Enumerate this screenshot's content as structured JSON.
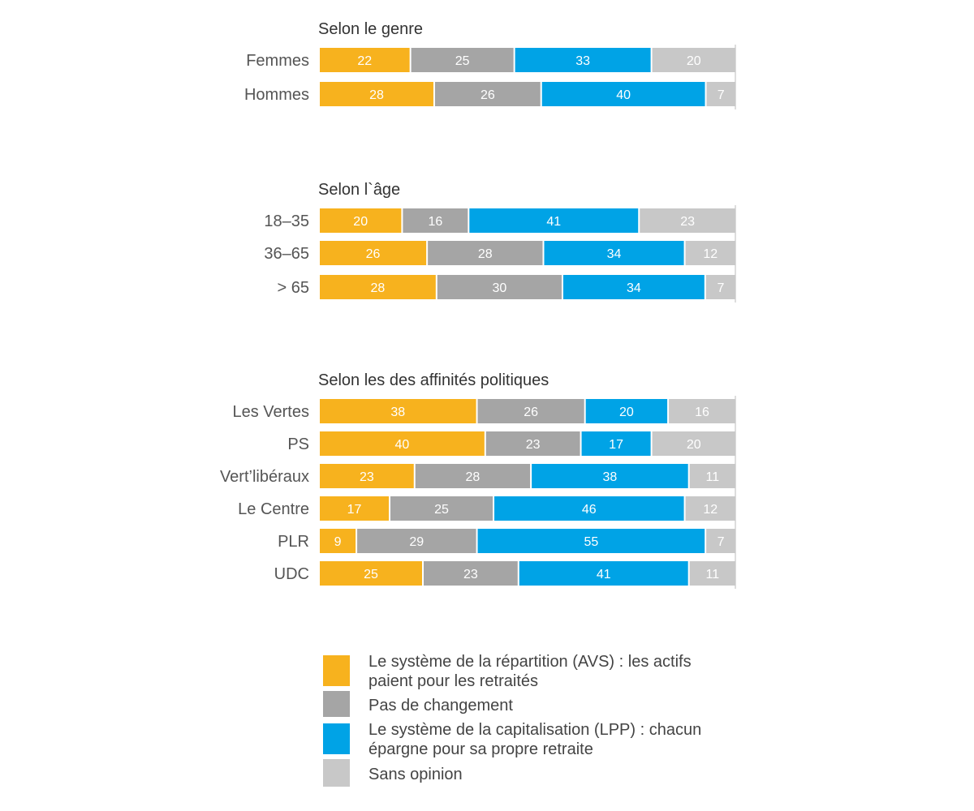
{
  "colors": {
    "repartition": "#f7b21e",
    "pas_changement": "#a5a5a5",
    "capitalisation": "#00a3e6",
    "sans_opinion": "#c8c8c8",
    "axis": "#bbbbbb",
    "value_text": "#ffffff"
  },
  "legend": [
    {
      "key": "repartition",
      "lines": [
        "Le système de la répartition (AVS) : les actifs",
        "paient pour les retraités"
      ]
    },
    {
      "key": "pas_changement",
      "lines": [
        "Pas de changement"
      ]
    },
    {
      "key": "capitalisation",
      "lines": [
        "Le système de la capitalisation (LPP) : chacun",
        "épargne pour sa propre retraite"
      ]
    },
    {
      "key": "sans_opinion",
      "lines": [
        "Sans opinion"
      ]
    }
  ],
  "chart_data": {
    "type": "bar",
    "orientation": "horizontal",
    "stacked": true,
    "xlim": [
      0,
      100
    ],
    "series_keys": [
      "repartition",
      "pas_changement",
      "capitalisation",
      "sans_opinion"
    ],
    "groups": [
      {
        "title": "Selon le genre",
        "rows": [
          {
            "label": "Femmes",
            "values": [
              22,
              25,
              33,
              20
            ]
          },
          {
            "label": "Hommes",
            "values": [
              28,
              26,
              40,
              7
            ]
          }
        ]
      },
      {
        "title": "Selon l`âge",
        "rows": [
          {
            "label": "18–35",
            "values": [
              20,
              16,
              41,
              23
            ]
          },
          {
            "label": "36–65",
            "values": [
              26,
              28,
              34,
              12
            ]
          },
          {
            "label": "> 65",
            "values": [
              28,
              30,
              34,
              7
            ]
          }
        ]
      },
      {
        "title": "Selon les des affinités politiques",
        "rows": [
          {
            "label": "Les Vertes",
            "values": [
              38,
              26,
              20,
              16
            ]
          },
          {
            "label": "PS",
            "values": [
              40,
              23,
              17,
              20
            ]
          },
          {
            "label": "Vert’libéraux",
            "values": [
              23,
              28,
              38,
              11
            ]
          },
          {
            "label": "Le Centre",
            "values": [
              17,
              25,
              46,
              12
            ]
          },
          {
            "label": "PLR",
            "values": [
              9,
              29,
              55,
              7
            ]
          },
          {
            "label": "UDC",
            "values": [
              25,
              23,
              41,
              11
            ]
          }
        ]
      }
    ]
  }
}
